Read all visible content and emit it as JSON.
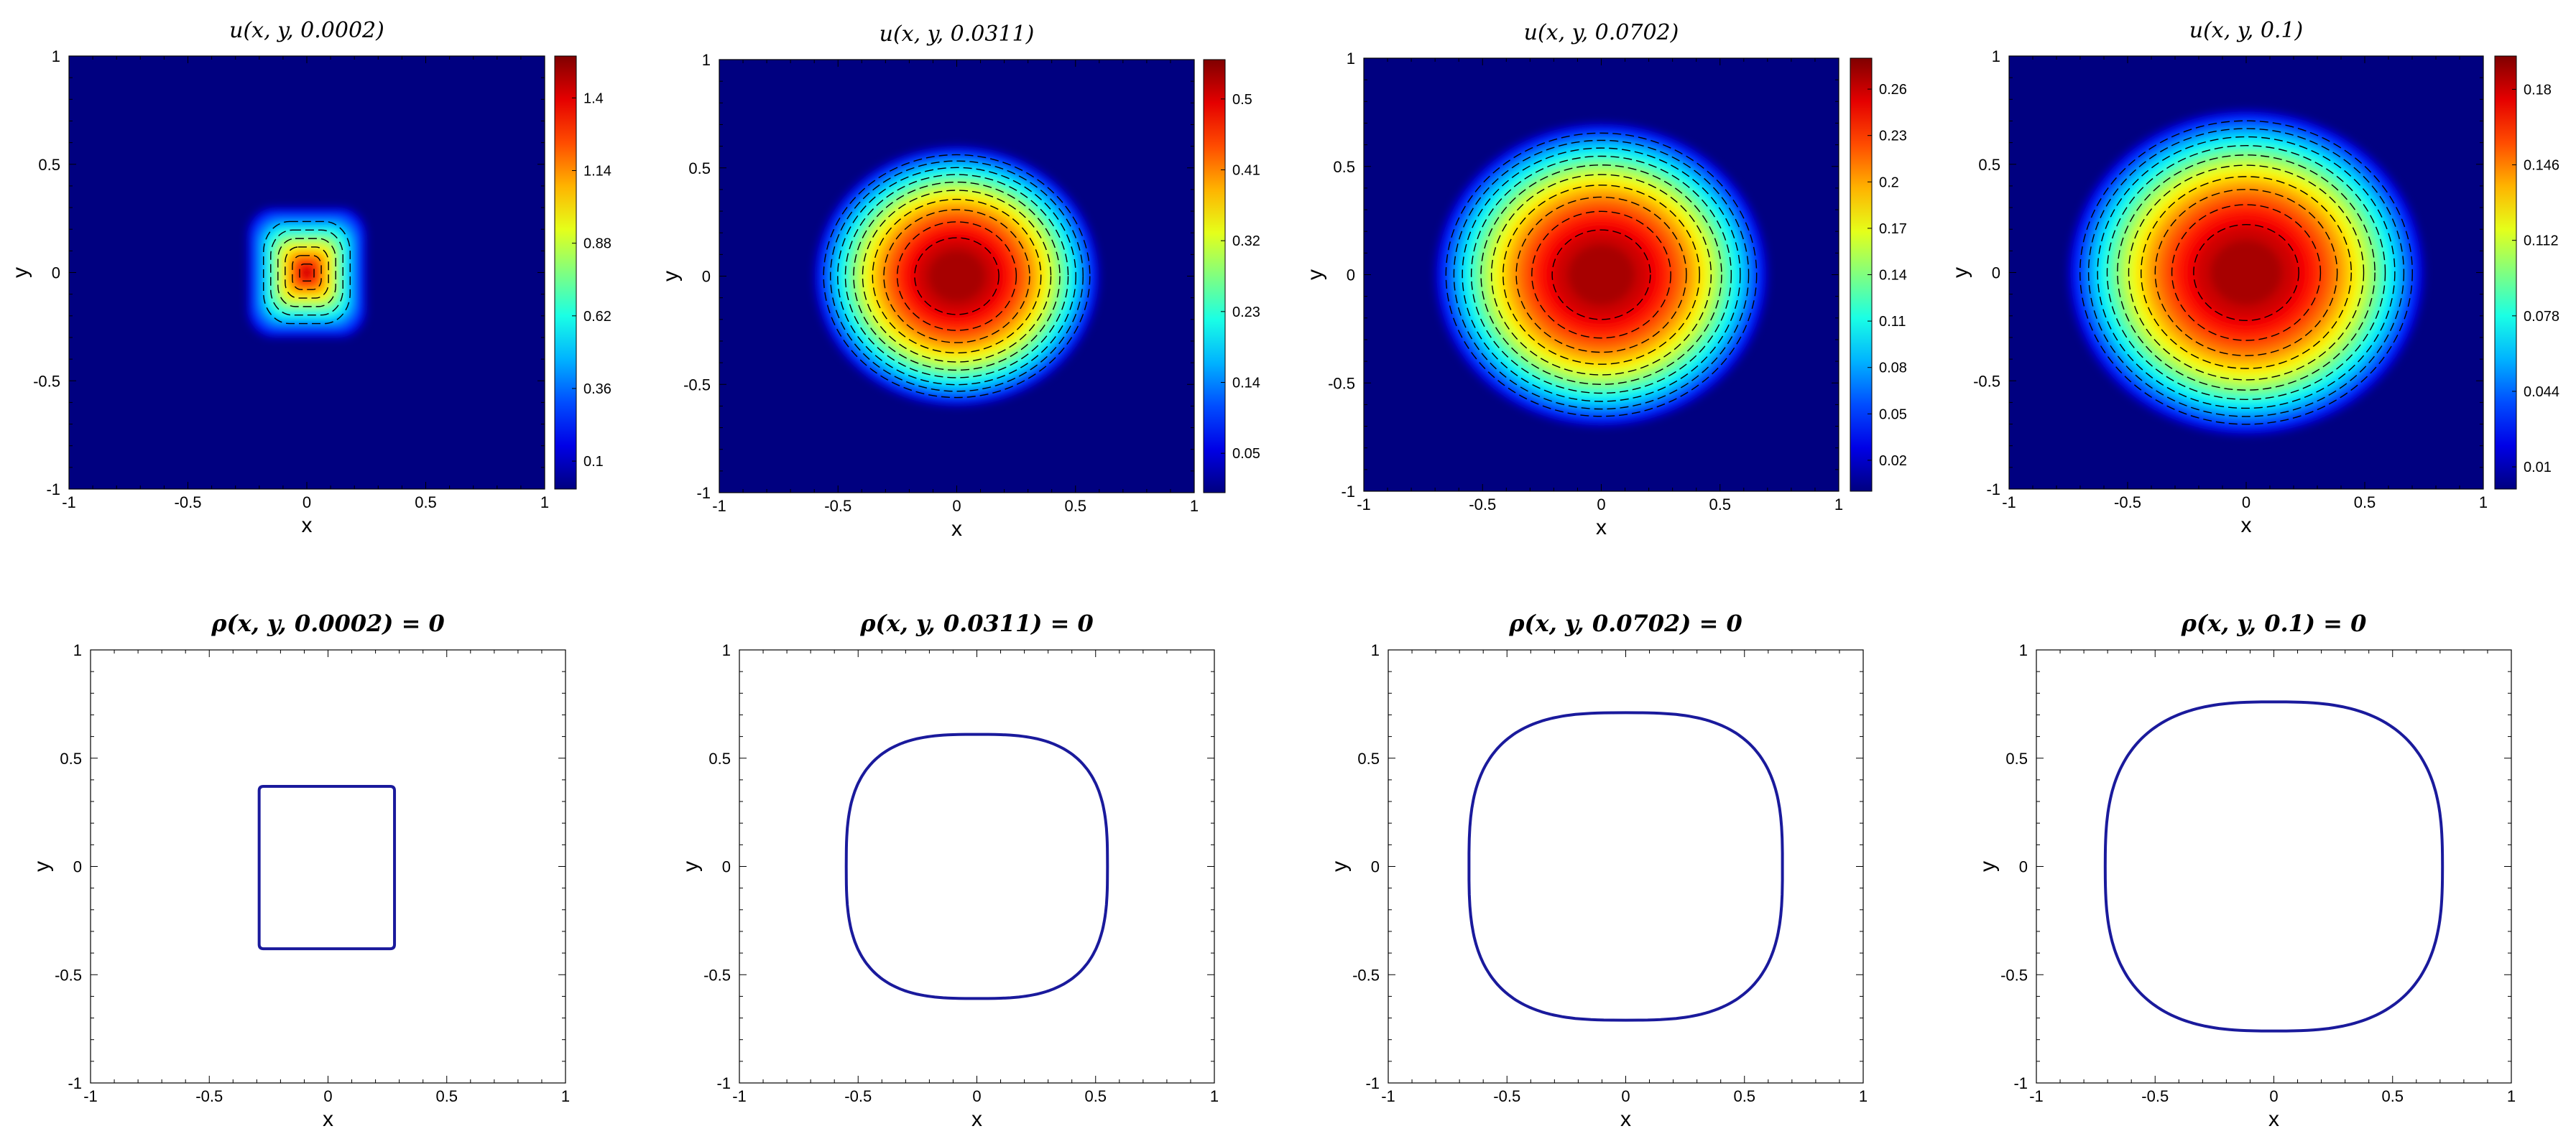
{
  "chart_data": [
    {
      "type": "heatmap",
      "title": "u(x, y, 0.0002)",
      "xlabel": "x",
      "ylabel": "y",
      "xlim": [
        -1,
        1
      ],
      "ylim": [
        -1,
        1
      ],
      "xticks": [
        "-1",
        "-0.5",
        "0",
        "0.5",
        "1"
      ],
      "yticks": [
        "-1",
        "-0.5",
        "0",
        "0.5",
        "1"
      ],
      "colorbar_ticks": [
        "0.1",
        "0.36",
        "0.62",
        "0.88",
        "1.14",
        "1.4"
      ],
      "colorbar_range": [
        0,
        1.55
      ],
      "field": {
        "shape": "square",
        "center": [
          0,
          0
        ],
        "half_width": 0.25,
        "peak": 1.55
      },
      "contours": "dashed-black"
    },
    {
      "type": "heatmap",
      "title": "u(x, y, 0.0311)",
      "xlabel": "x",
      "ylabel": "y",
      "xlim": [
        -1,
        1
      ],
      "ylim": [
        -1,
        1
      ],
      "xticks": [
        "-1",
        "-0.5",
        "0",
        "0.5",
        "1"
      ],
      "yticks": [
        "-1",
        "-0.5",
        "0",
        "0.5",
        "1"
      ],
      "colorbar_ticks": [
        "0.05",
        "0.14",
        "0.23",
        "0.32",
        "0.41",
        "0.5"
      ],
      "colorbar_range": [
        0,
        0.55
      ],
      "field": {
        "shape": "disk",
        "center": [
          0,
          0
        ],
        "radius": 0.6,
        "peak": 0.55
      },
      "contours": "dashed-black"
    },
    {
      "type": "heatmap",
      "title": "u(x, y, 0.0702)",
      "xlabel": "x",
      "ylabel": "y",
      "xlim": [
        -1,
        1
      ],
      "ylim": [
        -1,
        1
      ],
      "xticks": [
        "-1",
        "-0.5",
        "0",
        "0.5",
        "1"
      ],
      "yticks": [
        "-1",
        "-0.5",
        "0",
        "0.5",
        "1"
      ],
      "colorbar_ticks": [
        "0.02",
        "0.05",
        "0.08",
        "0.11",
        "0.14",
        "0.17",
        "0.2",
        "0.23",
        "0.26"
      ],
      "colorbar_range": [
        0,
        0.28
      ],
      "field": {
        "shape": "disk",
        "center": [
          0,
          0
        ],
        "radius": 0.7,
        "peak": 0.28
      },
      "contours": "dashed-black"
    },
    {
      "type": "heatmap",
      "title": "u(x, y, 0.1)",
      "xlabel": "x",
      "ylabel": "y",
      "xlim": [
        -1,
        1
      ],
      "ylim": [
        -1,
        1
      ],
      "xticks": [
        "-1",
        "-0.5",
        "0",
        "0.5",
        "1"
      ],
      "yticks": [
        "-1",
        "-0.5",
        "0",
        "0.5",
        "1"
      ],
      "colorbar_ticks": [
        "0.01",
        "0.044",
        "0.078",
        "0.112",
        "0.146",
        "0.18"
      ],
      "colorbar_range": [
        0,
        0.195
      ],
      "field": {
        "shape": "disk",
        "center": [
          0,
          0
        ],
        "radius": 0.75,
        "peak": 0.195
      },
      "contours": "dashed-black"
    },
    {
      "type": "line",
      "title": "ρ(x, y, 0.0002) = 0",
      "xlabel": "x",
      "ylabel": "y",
      "xlim": [
        -1,
        1
      ],
      "ylim": [
        -1,
        1
      ],
      "xticks": [
        "-1",
        "-0.5",
        "0",
        "0.5",
        "1"
      ],
      "yticks": [
        "-1",
        "-0.5",
        "0",
        "0.5",
        "1"
      ],
      "curve": {
        "shape": "rounded-square",
        "xmin": -0.29,
        "xmax": 0.28,
        "ymin": -0.38,
        "ymax": 0.37
      },
      "color": "#1a1a9c"
    },
    {
      "type": "line",
      "title": "ρ(x, y, 0.0311) = 0",
      "xlabel": "x",
      "ylabel": "y",
      "xlim": [
        -1,
        1
      ],
      "ylim": [
        -1,
        1
      ],
      "xticks": [
        "-1",
        "-0.5",
        "0",
        "0.5",
        "1"
      ],
      "yticks": [
        "-1",
        "-0.5",
        "0",
        "0.5",
        "1"
      ],
      "curve": {
        "shape": "superellipse",
        "rx": 0.55,
        "ry": 0.61,
        "exponent": 3
      },
      "color": "#1a1a9c"
    },
    {
      "type": "line",
      "title": "ρ(x, y, 0.0702) = 0",
      "xlabel": "x",
      "ylabel": "y",
      "xlim": [
        -1,
        1
      ],
      "ylim": [
        -1,
        1
      ],
      "xticks": [
        "-1",
        "-0.5",
        "0",
        "0.5",
        "1"
      ],
      "yticks": [
        "-1",
        "-0.5",
        "0",
        "0.5",
        "1"
      ],
      "curve": {
        "shape": "superellipse",
        "rx": 0.66,
        "ry": 0.71,
        "exponent": 3
      },
      "color": "#1a1a9c"
    },
    {
      "type": "line",
      "title": "ρ(x, y, 0.1) = 0",
      "xlabel": "x",
      "ylabel": "y",
      "xlim": [
        -1,
        1
      ],
      "ylim": [
        -1,
        1
      ],
      "xticks": [
        "-1",
        "-0.5",
        "0",
        "0.5",
        "1"
      ],
      "yticks": [
        "-1",
        "-0.5",
        "0",
        "0.5",
        "1"
      ],
      "curve": {
        "shape": "superellipse",
        "rx": 0.71,
        "ry": 0.76,
        "exponent": 2.8
      },
      "color": "#1a1a9c"
    }
  ]
}
